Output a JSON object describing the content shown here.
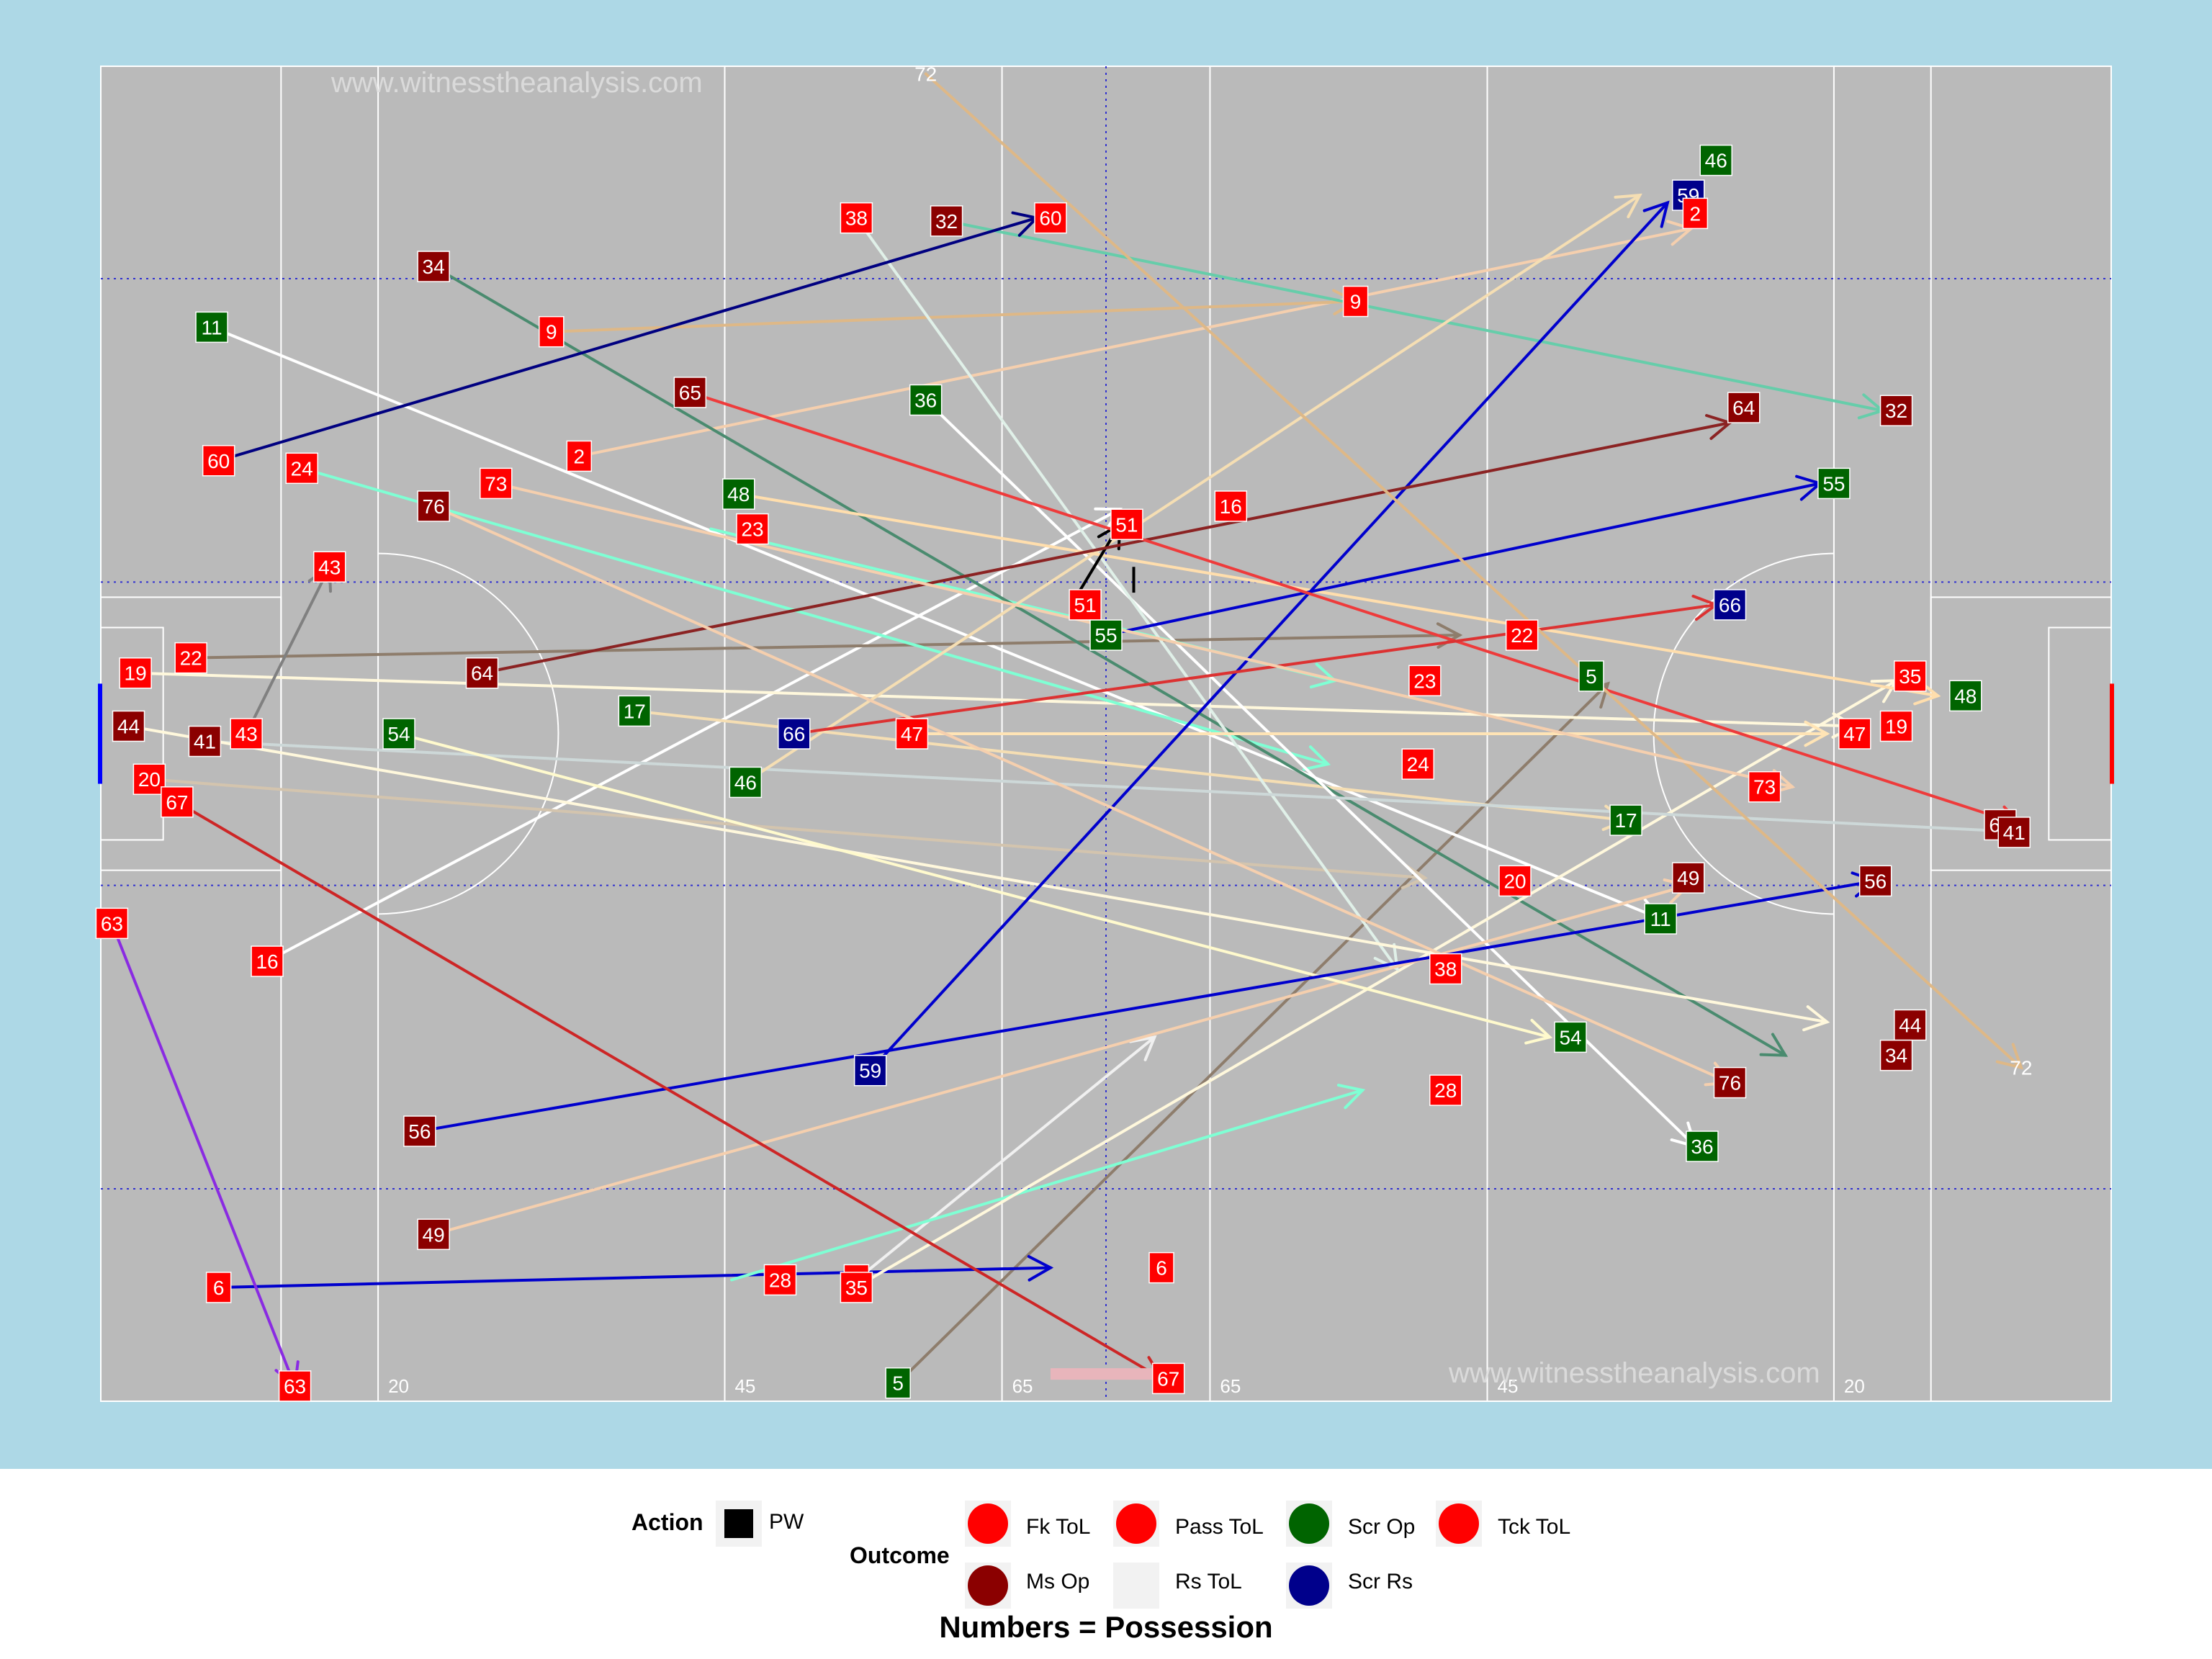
{
  "chart_data": {
    "type": "scatter",
    "xlim": [
      0,
      145
    ],
    "ylim": [
      0,
      88
    ],
    "watermark": "www.witnesstheanalysis.com",
    "distance_labels": [
      {
        "x": 20,
        "text": "20"
      },
      {
        "x": 45,
        "text": "45"
      },
      {
        "x": 65,
        "text": "65"
      },
      {
        "x": 80,
        "text": "65"
      },
      {
        "x": 100,
        "text": "45"
      },
      {
        "x": 125,
        "text": "20"
      }
    ],
    "outcomes": [
      {
        "key": "fk",
        "label": "Fk ToL",
        "color": "#ff0000"
      },
      {
        "key": "ms",
        "label": "Ms Op",
        "color": "#8b0000"
      },
      {
        "key": "pass",
        "label": "Pass ToL",
        "color": "#ff0000"
      },
      {
        "key": "rs",
        "label": "Rs ToL",
        "color": "#f2f2f2"
      },
      {
        "key": "scrop",
        "label": "Scr Op",
        "color": "#006400"
      },
      {
        "key": "scrrs",
        "label": "Scr Rs",
        "color": "#00008b"
      },
      {
        "key": "tck",
        "label": "Tck ToL",
        "color": "#ff0000"
      }
    ],
    "moves": [
      {
        "n": "2",
        "x1": 34.5,
        "y1": 62.3,
        "x2": 114.7,
        "y2": 77.3,
        "color": "#f5cfae",
        "outcome": "pass"
      },
      {
        "n": "5",
        "x1": 57.5,
        "y1": 1.2,
        "x2": 108.7,
        "y2": 47.3,
        "color": "#8e7d6c",
        "outcome": "scrop"
      },
      {
        "n": "6",
        "x1": 8.5,
        "y1": 7.5,
        "x2": 68.5,
        "y2": 8.8,
        "color": "#0000cd",
        "outcome": "fk"
      },
      {
        "n": "7",
        "x1": 54.5,
        "y1": 8.0,
        "x2": 76.0,
        "y2": 24.0,
        "color": "#f0f0f0",
        "outcome": "fk"
      },
      {
        "n": "9",
        "x1": 32.5,
        "y1": 70.5,
        "x2": 90.5,
        "y2": 72.5,
        "color": "#deb887",
        "outcome": "fk"
      },
      {
        "n": "11",
        "x1": 8.0,
        "y1": 70.8,
        "x2": 112.5,
        "y2": 31.8,
        "color": "#ffffff",
        "outcome": "scrop"
      },
      {
        "n": "16",
        "x1": 12.0,
        "y1": 29.0,
        "x2": 73.5,
        "y2": 58.8,
        "color": "#ffffff",
        "outcome": "fk"
      },
      {
        "n": "17",
        "x1": 38.5,
        "y1": 45.5,
        "x2": 110.0,
        "y2": 38.3,
        "color": "#f5deb3",
        "outcome": "scrop"
      },
      {
        "n": "19",
        "x1": 2.5,
        "y1": 48.0,
        "x2": 126.5,
        "y2": 44.5,
        "color": "#fff8dc",
        "outcome": "fk"
      },
      {
        "n": "20",
        "x1": 3.5,
        "y1": 41.0,
        "x2": 95.5,
        "y2": 34.5,
        "color": "#d3c4ae",
        "outcome": "fk"
      },
      {
        "n": "22",
        "x1": 6.5,
        "y1": 49.0,
        "x2": 98.0,
        "y2": 50.5,
        "color": "#8e7d6c",
        "outcome": "fk"
      },
      {
        "n": "23",
        "x1": 44.0,
        "y1": 57.5,
        "x2": 89.0,
        "y2": 47.5,
        "color": "#7fffd4",
        "outcome": "pass"
      },
      {
        "n": "24",
        "x1": 14.5,
        "y1": 61.5,
        "x2": 88.5,
        "y2": 42.0,
        "color": "#7fffd4",
        "outcome": "fk"
      },
      {
        "n": "28",
        "x1": 45.5,
        "y1": 8.0,
        "x2": 91.0,
        "y2": 20.5,
        "color": "#7fffd4",
        "outcome": "fk"
      },
      {
        "n": "32",
        "x1": 61.0,
        "y1": 77.8,
        "x2": 128.5,
        "y2": 65.3,
        "color": "#66cdaa",
        "outcome": "ms"
      },
      {
        "n": "34",
        "x1": 24.0,
        "y1": 74.8,
        "x2": 121.5,
        "y2": 22.8,
        "color": "#4a8b6f",
        "outcome": "ms"
      },
      {
        "n": "35",
        "x1": 55.0,
        "y1": 7.8,
        "x2": 129.5,
        "y2": 47.5,
        "color": "#fff8dc",
        "outcome": "fk"
      },
      {
        "n": "36",
        "x1": 59.5,
        "y1": 66.0,
        "x2": 115.0,
        "y2": 16.8,
        "color": "#ffffff",
        "outcome": "scrop"
      },
      {
        "n": "38",
        "x1": 54.5,
        "y1": 78.0,
        "x2": 93.5,
        "y2": 28.5,
        "color": "#e0f0e8",
        "outcome": "fk"
      },
      {
        "n": "41",
        "x1": 7.5,
        "y1": 43.5,
        "x2": 139.0,
        "y2": 37.5,
        "color": "#cdd8d8",
        "outcome": "ms"
      },
      {
        "n": "43",
        "x1": 10.5,
        "y1": 44.0,
        "x2": 16.5,
        "y2": 55.0,
        "color": "#808080",
        "outcome": "fk"
      },
      {
        "n": "44",
        "x1": 2.0,
        "y1": 44.5,
        "x2": 124.5,
        "y2": 25.0,
        "color": "#fff8dc",
        "outcome": "ms"
      },
      {
        "n": "46",
        "x1": 46.5,
        "y1": 40.8,
        "x2": 111.0,
        "y2": 79.5,
        "color": "#f5deb3",
        "outcome": "scrop"
      },
      {
        "n": "47",
        "x1": 58.5,
        "y1": 44.0,
        "x2": 124.5,
        "y2": 44.0,
        "color": "#ffe4b5",
        "outcome": "fk"
      },
      {
        "n": "48",
        "x1": 46.0,
        "y1": 59.8,
        "x2": 132.5,
        "y2": 46.5,
        "color": "#ffdead",
        "outcome": "scrop"
      },
      {
        "n": "49",
        "x1": 24.0,
        "y1": 11.0,
        "x2": 114.5,
        "y2": 34.0,
        "color": "#f5cfae",
        "outcome": "ms"
      },
      {
        "n": "51",
        "x1": 70.0,
        "y1": 52.5,
        "x2": 73.5,
        "y2": 57.8,
        "color": "#000000",
        "outcome": "pass"
      },
      {
        "n": "54",
        "x1": 21.5,
        "y1": 44.0,
        "x2": 104.5,
        "y2": 24.0,
        "color": "#fffacd",
        "outcome": "scrop"
      },
      {
        "n": "55",
        "x1": 72.5,
        "y1": 50.5,
        "x2": 124.0,
        "y2": 60.5,
        "color": "#0000cd",
        "outcome": "scrop"
      },
      {
        "n": "56",
        "x1": 23.0,
        "y1": 17.8,
        "x2": 128.0,
        "y2": 34.3,
        "color": "#0000cd",
        "outcome": "ms"
      },
      {
        "n": "59",
        "x1": 55.5,
        "y1": 21.8,
        "x2": 113.0,
        "y2": 79.0,
        "color": "#0000cd",
        "outcome": "scrrs"
      },
      {
        "n": "60",
        "x1": 8.5,
        "y1": 62.0,
        "x2": 67.5,
        "y2": 78.0,
        "color": "#000080",
        "outcome": "fk"
      },
      {
        "n": "63",
        "x1": 0.8,
        "y1": 31.5,
        "x2": 14.0,
        "y2": 1.0,
        "color": "#8a2be2",
        "outcome": "fk"
      },
      {
        "n": "64",
        "x1": 27.5,
        "y1": 48.0,
        "x2": 117.5,
        "y2": 64.5,
        "color": "#8b2323",
        "outcome": "ms"
      },
      {
        "n": "65",
        "x1": 42.5,
        "y1": 66.5,
        "x2": 138.5,
        "y2": 38.0,
        "color": "#ee3b3b",
        "outcome": "ms"
      },
      {
        "n": "66",
        "x1": 50.0,
        "y1": 44.0,
        "x2": 116.5,
        "y2": 52.5,
        "color": "#dc3232",
        "outcome": "scrrs"
      },
      {
        "n": "67",
        "x1": 5.5,
        "y1": 39.5,
        "x2": 76.5,
        "y2": 1.5,
        "color": "#cd2626",
        "outcome": "fk"
      },
      {
        "n": "72",
        "x1": 59.5,
        "y1": 87.5,
        "x2": 138.5,
        "y2": 22.0,
        "color": "#deb887",
        "outcome": "fk"
      },
      {
        "n": "73",
        "x1": 28.5,
        "y1": 60.5,
        "x2": 122.0,
        "y2": 40.5,
        "color": "#f5cfae",
        "outcome": "fk"
      },
      {
        "n": "76",
        "x1": 24.0,
        "y1": 59.0,
        "x2": 117.5,
        "y2": 21.0,
        "color": "#f5cfae",
        "outcome": "ms"
      }
    ],
    "pw_segment": {
      "x1": 74.5,
      "y1": 55.0,
      "x2": 74.5,
      "y2": 53.3,
      "color": "#000000"
    },
    "pink_arrow": {
      "x1": 68.5,
      "y1": 1.8,
      "x2": 76.0,
      "y2": 1.8,
      "color": "#e8b5bb"
    },
    "labels": [
      {
        "n": "60",
        "x": 68.5,
        "y": 78.0,
        "o": "fk"
      },
      {
        "n": "38",
        "x": 54.5,
        "y": 78.0,
        "o": "fk"
      },
      {
        "n": "32",
        "x": 61.0,
        "y": 77.8,
        "o": "ms"
      },
      {
        "n": "59",
        "x": 114.5,
        "y": 79.5,
        "o": "scrrs"
      },
      {
        "n": "2",
        "x": 115.0,
        "y": 78.3,
        "o": "fk"
      },
      {
        "n": "46",
        "x": 116.5,
        "y": 81.8,
        "o": "scrop"
      },
      {
        "n": "34",
        "x": 24.0,
        "y": 74.8,
        "o": "ms"
      },
      {
        "n": "11",
        "x": 8.0,
        "y": 70.8,
        "o": "scrop"
      },
      {
        "n": "9",
        "x": 32.5,
        "y": 70.5,
        "o": "fk"
      },
      {
        "n": "9",
        "x": 90.5,
        "y": 72.5,
        "o": "fk"
      },
      {
        "n": "65",
        "x": 42.5,
        "y": 66.5,
        "o": "ms"
      },
      {
        "n": "36",
        "x": 59.5,
        "y": 66.0,
        "o": "scrop"
      },
      {
        "n": "64",
        "x": 118.5,
        "y": 65.5,
        "o": "ms"
      },
      {
        "n": "32",
        "x": 129.5,
        "y": 65.3,
        "o": "ms"
      },
      {
        "n": "60",
        "x": 8.5,
        "y": 62.0,
        "o": "fk"
      },
      {
        "n": "24",
        "x": 14.5,
        "y": 61.5,
        "o": "fk"
      },
      {
        "n": "2",
        "x": 34.5,
        "y": 62.3,
        "o": "fk"
      },
      {
        "n": "73",
        "x": 28.5,
        "y": 60.5,
        "o": "fk"
      },
      {
        "n": "76",
        "x": 24.0,
        "y": 59.0,
        "o": "ms"
      },
      {
        "n": "48",
        "x": 46.0,
        "y": 59.8,
        "o": "scrop"
      },
      {
        "n": "23",
        "x": 47.0,
        "y": 57.5,
        "o": "fk"
      },
      {
        "n": "51",
        "x": 74.0,
        "y": 57.8,
        "o": "fk"
      },
      {
        "n": "16",
        "x": 81.5,
        "y": 59.0,
        "o": "fk"
      },
      {
        "n": "55",
        "x": 125.0,
        "y": 60.5,
        "o": "scrop"
      },
      {
        "n": "43",
        "x": 16.5,
        "y": 55.0,
        "o": "fk"
      },
      {
        "n": "51",
        "x": 71.0,
        "y": 52.5,
        "o": "fk"
      },
      {
        "n": "66",
        "x": 117.5,
        "y": 52.5,
        "o": "scrrs"
      },
      {
        "n": "55",
        "x": 72.5,
        "y": 50.5,
        "o": "scrop"
      },
      {
        "n": "22",
        "x": 6.5,
        "y": 49.0,
        "o": "fk"
      },
      {
        "n": "22",
        "x": 102.5,
        "y": 50.5,
        "o": "fk"
      },
      {
        "n": "19",
        "x": 2.5,
        "y": 48.0,
        "o": "fk"
      },
      {
        "n": "64",
        "x": 27.5,
        "y": 48.0,
        "o": "ms"
      },
      {
        "n": "23",
        "x": 95.5,
        "y": 47.5,
        "o": "fk"
      },
      {
        "n": "5",
        "x": 107.5,
        "y": 47.8,
        "o": "scrop"
      },
      {
        "n": "35",
        "x": 130.5,
        "y": 47.8,
        "o": "fk"
      },
      {
        "n": "48",
        "x": 134.5,
        "y": 46.5,
        "o": "scrop"
      },
      {
        "n": "44",
        "x": 2.0,
        "y": 44.5,
        "o": "ms"
      },
      {
        "n": "41",
        "x": 7.5,
        "y": 43.5,
        "o": "ms"
      },
      {
        "n": "43",
        "x": 10.5,
        "y": 44.0,
        "o": "fk"
      },
      {
        "n": "54",
        "x": 21.5,
        "y": 44.0,
        "o": "scrop"
      },
      {
        "n": "17",
        "x": 38.5,
        "y": 45.5,
        "o": "scrop"
      },
      {
        "n": "66",
        "x": 50.0,
        "y": 44.0,
        "o": "scrrs"
      },
      {
        "n": "47",
        "x": 58.5,
        "y": 44.0,
        "o": "fk"
      },
      {
        "n": "47",
        "x": 126.5,
        "y": 44.0,
        "o": "fk"
      },
      {
        "n": "19",
        "x": 129.5,
        "y": 44.5,
        "o": "fk"
      },
      {
        "n": "24",
        "x": 95.0,
        "y": 42.0,
        "o": "fk"
      },
      {
        "n": "20",
        "x": 3.5,
        "y": 41.0,
        "o": "fk"
      },
      {
        "n": "46",
        "x": 46.5,
        "y": 40.8,
        "o": "scrop"
      },
      {
        "n": "67",
        "x": 5.5,
        "y": 39.5,
        "o": "fk"
      },
      {
        "n": "73",
        "x": 120.0,
        "y": 40.5,
        "o": "fk"
      },
      {
        "n": "17",
        "x": 110.0,
        "y": 38.3,
        "o": "scrop"
      },
      {
        "n": "65",
        "x": 137.0,
        "y": 38.0,
        "o": "ms"
      },
      {
        "n": "41",
        "x": 138.0,
        "y": 37.5,
        "o": "ms"
      },
      {
        "n": "49",
        "x": 114.5,
        "y": 34.5,
        "o": "ms"
      },
      {
        "n": "56",
        "x": 128.0,
        "y": 34.3,
        "o": "ms"
      },
      {
        "n": "20",
        "x": 102.0,
        "y": 34.3,
        "o": "fk"
      },
      {
        "n": "63",
        "x": 0.8,
        "y": 31.5,
        "o": "fk"
      },
      {
        "n": "11",
        "x": 112.5,
        "y": 31.8,
        "o": "scrop"
      },
      {
        "n": "16",
        "x": 12.0,
        "y": 29.0,
        "o": "fk"
      },
      {
        "n": "38",
        "x": 97.0,
        "y": 28.5,
        "o": "fk"
      },
      {
        "n": "44",
        "x": 130.5,
        "y": 24.8,
        "o": "ms"
      },
      {
        "n": "54",
        "x": 106.0,
        "y": 24.0,
        "o": "scrop"
      },
      {
        "n": "34",
        "x": 129.5,
        "y": 22.8,
        "o": "ms"
      },
      {
        "n": "59",
        "x": 55.5,
        "y": 21.8,
        "o": "scrrs"
      },
      {
        "n": "76",
        "x": 117.5,
        "y": 21.0,
        "o": "ms"
      },
      {
        "n": "28",
        "x": 97.0,
        "y": 20.5,
        "o": "fk"
      },
      {
        "n": "56",
        "x": 23.0,
        "y": 17.8,
        "o": "ms"
      },
      {
        "n": "36",
        "x": 115.5,
        "y": 16.8,
        "o": "scrop"
      },
      {
        "n": "49",
        "x": 24.0,
        "y": 11.0,
        "o": "ms"
      },
      {
        "n": "6",
        "x": 8.5,
        "y": 7.5,
        "o": "fk"
      },
      {
        "n": "28",
        "x": 49.0,
        "y": 8.0,
        "o": "fk"
      },
      {
        "n": "7",
        "x": 54.5,
        "y": 8.0,
        "o": "fk"
      },
      {
        "n": "35",
        "x": 54.5,
        "y": 7.5,
        "o": "fk"
      },
      {
        "n": "6",
        "x": 76.5,
        "y": 8.8,
        "o": "fk"
      },
      {
        "n": "5",
        "x": 57.5,
        "y": 1.2,
        "o": "scrop"
      },
      {
        "n": "63",
        "x": 14.0,
        "y": 1.0,
        "o": "fk"
      },
      {
        "n": "67",
        "x": 77.0,
        "y": 1.5,
        "o": "fk"
      }
    ],
    "plain_labels": [
      {
        "n": "72",
        "x": 59.5,
        "y": 87.5
      },
      {
        "n": "72",
        "x": 138.5,
        "y": 22.0
      }
    ]
  },
  "legend": {
    "action_title": "Action",
    "action_label": "PW",
    "outcome_title": "Outcome",
    "caption": "Numbers = Possession"
  }
}
